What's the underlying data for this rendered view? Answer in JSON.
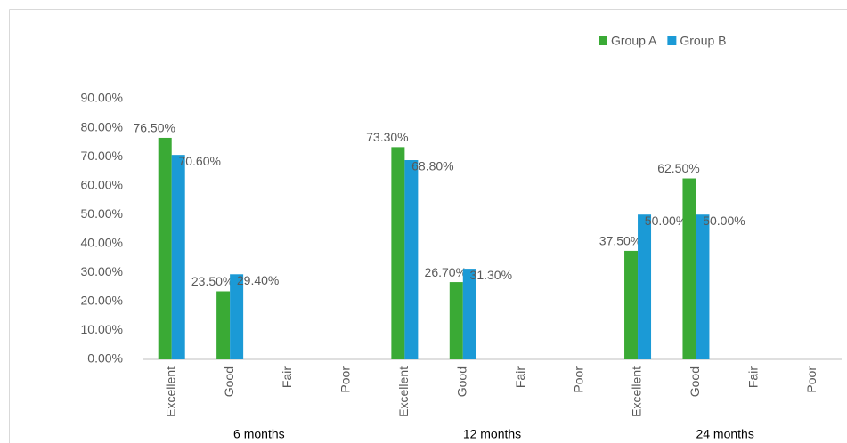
{
  "chart_data": {
    "type": "bar",
    "categories": [
      "Excellent",
      "Good",
      "Fair",
      "Poor",
      "Excellent",
      "Good",
      "Fair",
      "Poor",
      "Excellent",
      "Good",
      "Fair",
      "Poor"
    ],
    "category_groups": [
      "6 months",
      "12 months",
      "24 months"
    ],
    "series": [
      {
        "name": "Group A",
        "color": "#3aaa35",
        "values": [
          76.5,
          23.5,
          null,
          null,
          73.3,
          26.7,
          null,
          null,
          37.5,
          62.5,
          null,
          null
        ],
        "value_labels": [
          "76.50%",
          "23.50%",
          null,
          null,
          "73.30%",
          "26.70%",
          null,
          null,
          "37.50%",
          "62.50%",
          null,
          null
        ]
      },
      {
        "name": "Group B",
        "color": "#1b9ad6",
        "values": [
          70.6,
          29.4,
          null,
          null,
          68.8,
          31.3,
          null,
          null,
          50,
          50,
          null,
          null
        ],
        "value_labels": [
          "70.60%",
          "29.40%",
          null,
          null,
          "68.80%",
          "31.30%",
          null,
          null,
          "50.00%",
          "50.00%",
          null,
          null
        ]
      }
    ],
    "ylim": [
      0,
      90
    ],
    "yticks": [
      {
        "value": 0,
        "label": "0.00%"
      },
      {
        "value": 10,
        "label": "10.00%"
      },
      {
        "value": 20,
        "label": "20.00%"
      },
      {
        "value": 30,
        "label": "30.00%"
      },
      {
        "value": 40,
        "label": "40.00%"
      },
      {
        "value": 50,
        "label": "50.00%"
      },
      {
        "value": 60,
        "label": "60.00%"
      },
      {
        "value": 70,
        "label": "70.00%"
      },
      {
        "value": 80,
        "label": "80.00%"
      },
      {
        "value": 90,
        "label": "90.00%"
      }
    ],
    "grid": false,
    "legend": "top-right"
  }
}
